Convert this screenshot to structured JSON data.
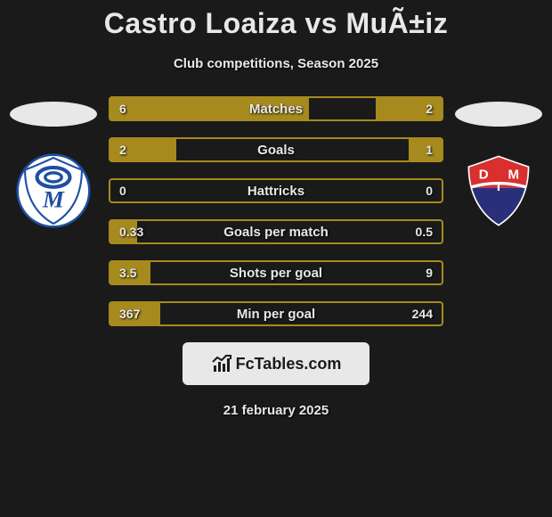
{
  "title": "Castro Loaiza vs MuÃ±iz",
  "subtitle": "Club competitions, Season 2025",
  "date": "21 february 2025",
  "branding_text": "FcTables.com",
  "colors": {
    "background": "#1a1a1a",
    "bar_border": "#a68a1e",
    "bar_fill": "#a68a1e",
    "text_light": "#e8e8e8",
    "branding_bg": "#e8e8e8",
    "branding_text": "#1a1a1a"
  },
  "crests": {
    "left": {
      "name": "millonarios-crest",
      "bg": "#ffffff",
      "primary": "#1e4fa3",
      "letter": "M"
    },
    "right": {
      "name": "dim-crest",
      "top": "#d92f2f",
      "bottom": "#2a2f7a",
      "letters": "DIM"
    }
  },
  "stats": [
    {
      "label": "Matches",
      "left_value": "6",
      "right_value": "2",
      "left_pct": 60,
      "right_pct": 20
    },
    {
      "label": "Goals",
      "left_value": "2",
      "right_value": "1",
      "left_pct": 20,
      "right_pct": 10
    },
    {
      "label": "Hattricks",
      "left_value": "0",
      "right_value": "0",
      "left_pct": 0,
      "right_pct": 0
    },
    {
      "label": "Goals per match",
      "left_value": "0.33",
      "right_value": "0.5",
      "left_pct": 8,
      "right_pct": 0
    },
    {
      "label": "Shots per goal",
      "left_value": "3.5",
      "right_value": "9",
      "left_pct": 12,
      "right_pct": 0
    },
    {
      "label": "Min per goal",
      "left_value": "367",
      "right_value": "244",
      "left_pct": 15,
      "right_pct": 0
    }
  ]
}
